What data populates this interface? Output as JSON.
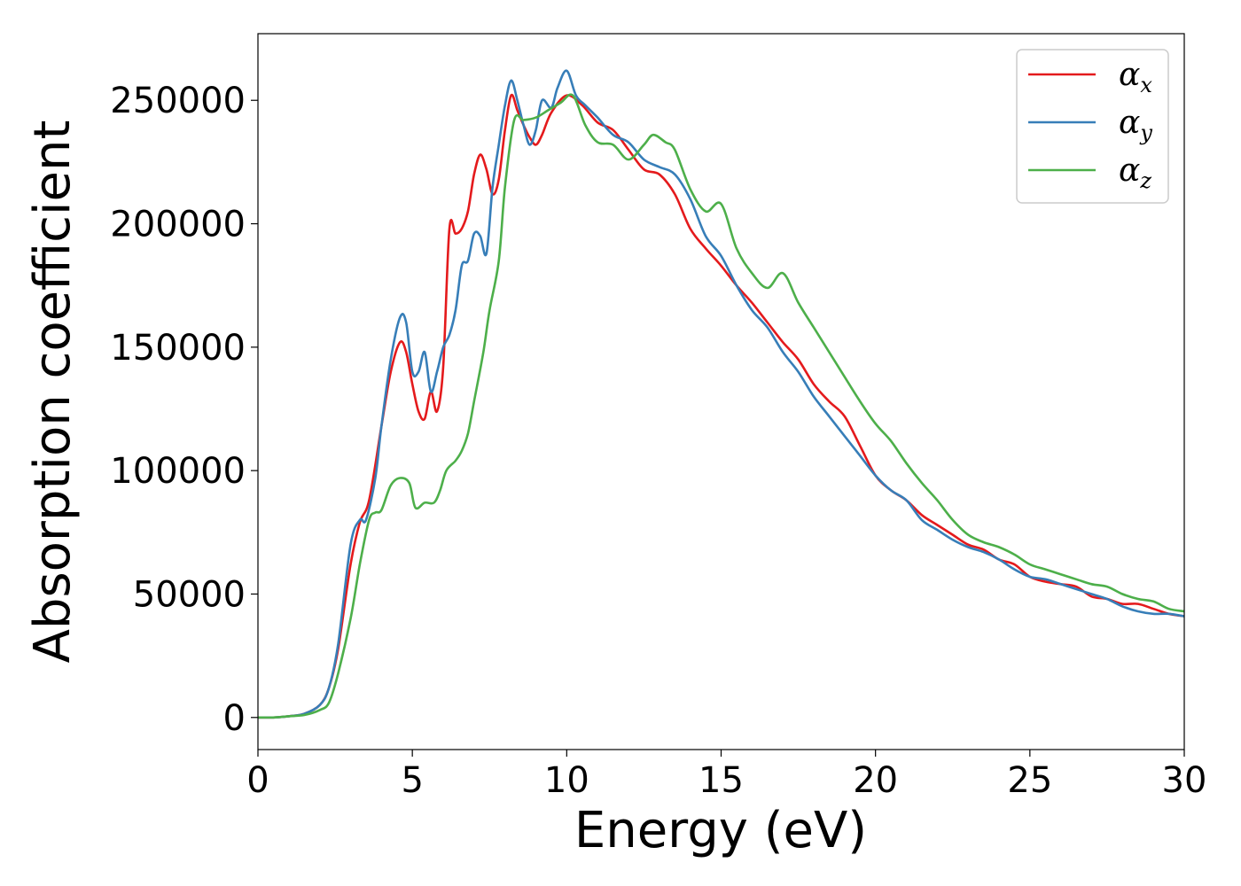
{
  "chart_data": {
    "type": "line",
    "title": "",
    "xlabel": "Energy (eV)",
    "ylabel": "Absorption coefficient",
    "xlim": [
      0,
      30
    ],
    "ylim": [
      -13000,
      277000
    ],
    "xticks": [
      0,
      5,
      10,
      15,
      20,
      25,
      30
    ],
    "yticks": [
      0,
      50000,
      100000,
      150000,
      200000,
      250000
    ],
    "grid": false,
    "legend_position": "top-right",
    "series": [
      {
        "name": "αx",
        "symbol": "α",
        "subscript": "x",
        "color": "#e41a1c",
        "x": [
          0,
          0.5,
          1,
          1.5,
          2,
          2.3,
          2.6,
          3,
          3.3,
          3.6,
          4,
          4.3,
          4.6,
          4.8,
          5,
          5.2,
          5.4,
          5.6,
          5.8,
          6,
          6.2,
          6.4,
          6.6,
          6.8,
          7,
          7.2,
          7.4,
          7.6,
          7.8,
          8,
          8.2,
          8.4,
          8.6,
          8.8,
          9,
          9.2,
          9.5,
          10,
          10.5,
          11,
          11.5,
          12,
          12.5,
          13,
          13.5,
          14,
          14.5,
          15,
          15.5,
          16,
          16.5,
          17,
          17.5,
          18,
          18.5,
          19,
          19.5,
          20,
          20.5,
          21,
          21.5,
          22,
          22.5,
          23,
          23.5,
          24,
          24.5,
          25,
          25.5,
          26,
          26.5,
          27,
          27.5,
          28,
          28.5,
          29,
          29.5,
          30
        ],
        "y": [
          0,
          0,
          500,
          1500,
          5000,
          12000,
          28000,
          62000,
          79000,
          88000,
          118000,
          140000,
          152000,
          148000,
          135000,
          124000,
          121000,
          132000,
          124000,
          142000,
          198000,
          196000,
          198000,
          205000,
          220000,
          228000,
          222000,
          212000,
          218000,
          238000,
          252000,
          246000,
          240000,
          235000,
          232000,
          236000,
          245000,
          252000,
          248000,
          241000,
          238000,
          230000,
          222000,
          220000,
          212000,
          198000,
          190000,
          183000,
          175000,
          168000,
          160000,
          152000,
          145000,
          135000,
          128000,
          122000,
          110000,
          98000,
          92000,
          88000,
          82000,
          78000,
          74000,
          70000,
          68000,
          64000,
          62000,
          57000,
          55000,
          54000,
          53000,
          49000,
          48000,
          46000,
          46000,
          44000,
          42000,
          41000
        ]
      },
      {
        "name": "αy",
        "symbol": "α",
        "subscript": "y",
        "color": "#377eb8",
        "x": [
          0,
          0.5,
          1,
          1.5,
          2,
          2.3,
          2.6,
          3,
          3.3,
          3.5,
          3.8,
          4,
          4.3,
          4.6,
          4.8,
          5,
          5.2,
          5.4,
          5.6,
          5.8,
          6,
          6.2,
          6.4,
          6.6,
          6.8,
          7,
          7.2,
          7.4,
          7.6,
          7.8,
          8,
          8.2,
          8.4,
          8.6,
          8.8,
          9,
          9.2,
          9.5,
          9.7,
          10,
          10.3,
          10.6,
          11,
          11.5,
          12,
          12.5,
          13,
          13.5,
          14,
          14.5,
          15,
          15.5,
          16,
          16.5,
          17,
          17.5,
          18,
          18.5,
          19,
          19.5,
          20,
          20.5,
          21,
          21.5,
          22,
          22.5,
          23,
          23.5,
          24,
          24.5,
          25,
          25.5,
          26,
          26.5,
          27,
          27.5,
          28,
          28.5,
          29,
          29.5,
          30
        ],
        "y": [
          0,
          0,
          500,
          1500,
          5000,
          12000,
          30000,
          70000,
          80000,
          80000,
          97000,
          118000,
          145000,
          162000,
          160000,
          140000,
          140000,
          148000,
          132000,
          140000,
          150000,
          155000,
          165000,
          183000,
          185000,
          196000,
          195000,
          188000,
          215000,
          232000,
          248000,
          258000,
          250000,
          240000,
          232000,
          238000,
          250000,
          247000,
          255000,
          262000,
          252000,
          248000,
          243000,
          236000,
          233000,
          226000,
          223000,
          220000,
          210000,
          195000,
          187000,
          175000,
          165000,
          158000,
          148000,
          140000,
          130000,
          122000,
          114000,
          106000,
          98000,
          92000,
          88000,
          80000,
          76000,
          72000,
          69000,
          67000,
          64000,
          60000,
          57000,
          56000,
          54000,
          52000,
          50000,
          48000,
          45000,
          43000,
          42000,
          42000,
          41000
        ]
      },
      {
        "name": "αz",
        "symbol": "α",
        "subscript": "z",
        "color": "#4daf4a",
        "x": [
          0,
          0.5,
          1,
          1.5,
          2,
          2.3,
          2.6,
          3,
          3.3,
          3.6,
          3.8,
          4,
          4.3,
          4.6,
          4.9,
          5.1,
          5.4,
          5.7,
          5.9,
          6.1,
          6.4,
          6.6,
          6.8,
          7,
          7.3,
          7.5,
          7.8,
          8,
          8.3,
          8.6,
          9,
          9.4,
          9.8,
          10.2,
          10.6,
          11,
          11.5,
          12,
          12.5,
          12.8,
          13.2,
          13.5,
          14,
          14.5,
          15,
          15.5,
          16,
          16.5,
          17,
          17.5,
          18,
          18.5,
          19,
          19.5,
          20,
          20.5,
          21,
          21.5,
          22,
          22.5,
          23,
          23.5,
          24,
          24.5,
          25,
          25.5,
          26,
          26.5,
          27,
          27.5,
          28,
          28.5,
          29,
          29.5,
          30
        ],
        "y": [
          0,
          0,
          500,
          1000,
          3000,
          6000,
          18000,
          40000,
          62000,
          80000,
          83000,
          84000,
          94000,
          97000,
          95000,
          85000,
          87000,
          87000,
          92000,
          100000,
          104000,
          108000,
          115000,
          128000,
          148000,
          165000,
          185000,
          215000,
          242000,
          242000,
          243000,
          246000,
          249000,
          252000,
          240000,
          233000,
          232000,
          226000,
          232000,
          236000,
          233000,
          230000,
          214000,
          205000,
          208000,
          190000,
          180000,
          174000,
          180000,
          168000,
          158000,
          148000,
          138000,
          128000,
          119000,
          112000,
          103000,
          95000,
          88000,
          80000,
          74000,
          71000,
          69000,
          66000,
          62000,
          60000,
          58000,
          56000,
          54000,
          53000,
          50000,
          48000,
          47000,
          44000,
          43000
        ]
      }
    ]
  }
}
